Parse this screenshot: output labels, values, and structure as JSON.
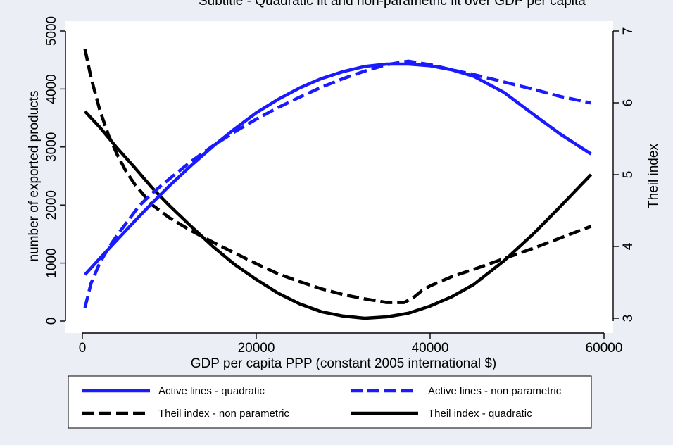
{
  "chart_data": {
    "type": "line",
    "title": "Subtitle - Quadratic fit and non-parametric fit over GDP per capita",
    "xlabel": "GDP per capita PPP (constant 2005 international $)",
    "ylabel_left": "number of exported products",
    "ylabel_right": "Theil index",
    "xlim": [
      -1000,
      60500
    ],
    "xticks": [
      0,
      20000,
      40000,
      60000
    ],
    "xtick_labels": [
      "0",
      "20000",
      "40000",
      "60000"
    ],
    "ylim_left": [
      0,
      5000
    ],
    "yticks_left": [
      0,
      1000,
      2000,
      3000,
      4000,
      5000
    ],
    "ytick_labels_left": [
      "0",
      "1000",
      "2000",
      "3000",
      "4000",
      "5000"
    ],
    "ylim_right": [
      3,
      7
    ],
    "yticks_right": [
      3,
      4,
      5,
      6,
      7
    ],
    "ytick_labels_right": [
      "3",
      "4",
      "5",
      "6",
      "7"
    ],
    "grid": false,
    "legend_position": "bottom",
    "colors": {
      "blue": "#1a1aff",
      "black": "#000000",
      "background": "#ebeff5",
      "plot_bg": "#ffffff"
    },
    "series": [
      {
        "name": "Active lines - quadratic",
        "axis": "left",
        "color": "#1a1aff",
        "dash": "solid",
        "x": [
          300,
          2000,
          4000,
          6000,
          8000,
          10000,
          12500,
          15000,
          17500,
          20000,
          22500,
          25000,
          27500,
          30000,
          32500,
          35000,
          37500,
          40000,
          42500,
          45000,
          48500,
          52000,
          55000,
          58500
        ],
        "y": [
          800,
          1080,
          1400,
          1720,
          2030,
          2330,
          2680,
          3010,
          3310,
          3590,
          3820,
          4020,
          4180,
          4300,
          4390,
          4430,
          4430,
          4400,
          4330,
          4220,
          3940,
          3550,
          3220,
          2880
        ]
      },
      {
        "name": "Active lines - non parametric",
        "axis": "left",
        "color": "#1a1aff",
        "dash": "dashed",
        "x": [
          300,
          1000,
          2000,
          3000,
          4000,
          5000,
          6500,
          8000,
          10000,
          12500,
          15000,
          17500,
          20000,
          22500,
          25000,
          27500,
          30000,
          32500,
          35000,
          37500,
          40000,
          42500,
          45000,
          48500,
          52000,
          55000,
          58500
        ],
        "y": [
          230,
          650,
          1000,
          1260,
          1480,
          1680,
          1980,
          2200,
          2450,
          2750,
          3020,
          3260,
          3480,
          3680,
          3860,
          4030,
          4180,
          4310,
          4420,
          4480,
          4420,
          4330,
          4250,
          4120,
          3990,
          3870,
          3760
        ]
      },
      {
        "name": "Theil index - non parametric",
        "axis": "right",
        "color": "#000000",
        "dash": "dashed",
        "x": [
          300,
          1000,
          2000,
          3000,
          4000,
          5000,
          6000,
          8000,
          10000,
          12500,
          15000,
          17500,
          20000,
          22500,
          25000,
          27500,
          30000,
          32500,
          35000,
          37000,
          38000,
          39000,
          40000,
          42500,
          45000,
          48500,
          52000,
          55000,
          58500
        ],
        "y": [
          6.75,
          6.35,
          5.9,
          5.55,
          5.28,
          5.05,
          4.87,
          4.58,
          4.4,
          4.22,
          4.06,
          3.91,
          3.76,
          3.62,
          3.51,
          3.41,
          3.33,
          3.27,
          3.22,
          3.22,
          3.28,
          3.38,
          3.45,
          3.58,
          3.68,
          3.83,
          3.98,
          4.12,
          4.28
        ]
      },
      {
        "name": "Theil index - quadratic",
        "axis": "right",
        "color": "#000000",
        "dash": "solid",
        "x": [
          300,
          2000,
          4000,
          6000,
          8000,
          10000,
          12500,
          15000,
          17500,
          20000,
          22500,
          25000,
          27500,
          30000,
          32500,
          35000,
          37500,
          40000,
          42500,
          45000,
          48500,
          52000,
          55000,
          58500
        ],
        "y": [
          5.88,
          5.66,
          5.37,
          5.1,
          4.82,
          4.57,
          4.28,
          4.0,
          3.75,
          3.54,
          3.35,
          3.2,
          3.09,
          3.03,
          3.0,
          3.02,
          3.07,
          3.17,
          3.3,
          3.47,
          3.8,
          4.19,
          4.56,
          5.0
        ]
      }
    ],
    "legend_order": [
      0,
      1,
      2,
      3
    ]
  }
}
